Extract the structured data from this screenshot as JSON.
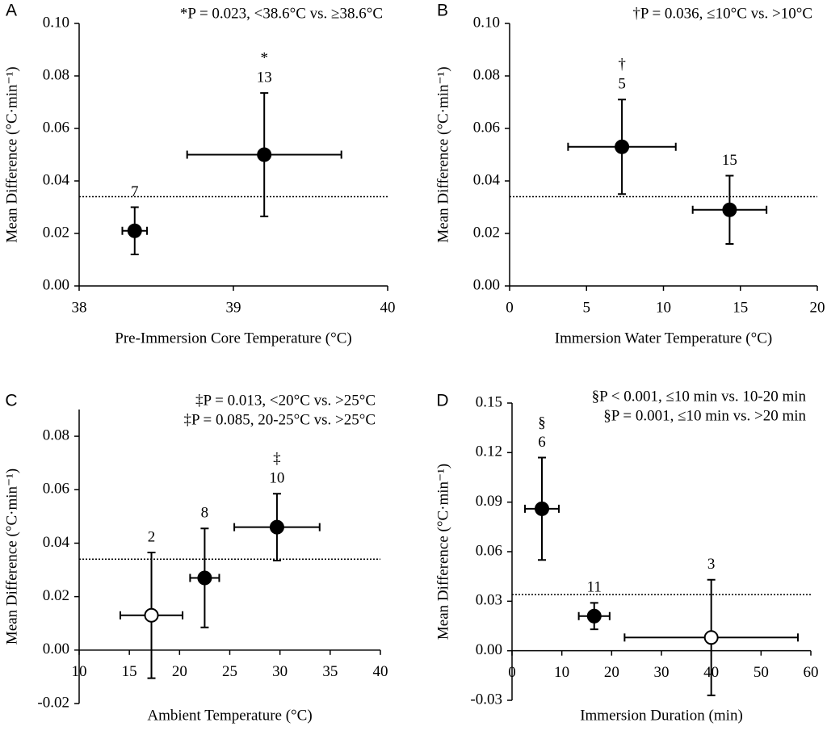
{
  "chart_data": [
    {
      "type": "scatter",
      "label": "A",
      "annotations": [
        "*P = 0.023, <38.6°C vs. ≥38.6°C"
      ],
      "xlabel": "Pre-Immersion Core Temperature (°C)",
      "ylabel": "Mean Difference (°C·min⁻¹)",
      "xlim": [
        38,
        40
      ],
      "xticks": [
        38,
        39,
        40
      ],
      "ylim": [
        0,
        0.1
      ],
      "yticks": [
        {
          "value": 0,
          "label": "0.00"
        },
        0.02,
        0.04,
        0.06,
        0.08,
        {
          "value": 0.1,
          "label": "0.10"
        }
      ],
      "x": [
        38.36,
        39.2
      ],
      "values": [
        0.021,
        0.05
      ],
      "x_error": [
        0.08,
        0.5
      ],
      "y_error": [
        0.009,
        0.0235
      ],
      "filled": [
        true,
        true
      ],
      "point_labels": [
        "7",
        "13"
      ],
      "symbols": [
        null,
        "*"
      ],
      "reference_line": 0.034,
      "color": "#000000"
    },
    {
      "type": "scatter",
      "label": "B",
      "annotations": [
        "†P = 0.036, ≤10°C vs. >10°C"
      ],
      "xlabel": "Immersion Water Temperature (°C)",
      "ylabel": "Mean Difference (°C·min⁻¹)",
      "xlim": [
        0,
        20
      ],
      "xticks": [
        0,
        5,
        10,
        15,
        20
      ],
      "ylim": [
        0,
        0.1
      ],
      "yticks": [
        {
          "value": 0,
          "label": "0.00"
        },
        0.02,
        0.04,
        0.06,
        0.08,
        {
          "value": 0.1,
          "label": "0.10"
        }
      ],
      "x": [
        7.3,
        14.3
      ],
      "values": [
        0.053,
        0.029
      ],
      "x_error": [
        3.5,
        2.4
      ],
      "y_error": [
        0.018,
        0.013
      ],
      "filled": [
        true,
        true
      ],
      "point_labels": [
        "5",
        "15"
      ],
      "symbols": [
        "†",
        null
      ],
      "reference_line": 0.034,
      "color": "#000000"
    },
    {
      "type": "scatter",
      "label": "C",
      "annotations": [
        "‡P = 0.013, <20°C vs. >25°C",
        "‡P = 0.085, 20-25°C vs. >25°C"
      ],
      "xlabel": "Ambient Temperature (°C)",
      "ylabel": "Mean Difference (°C·min⁻¹)",
      "xlim": [
        10,
        40
      ],
      "xticks": [
        10,
        15,
        20,
        25,
        30,
        35,
        40
      ],
      "ylim": [
        -0.02,
        0.09
      ],
      "yticks": [
        -0.02,
        {
          "value": 0,
          "label": "0.00"
        },
        0.02,
        0.04,
        0.06,
        0.08
      ],
      "x": [
        17.2,
        22.5,
        29.7
      ],
      "values": [
        0.013,
        0.027,
        0.046
      ],
      "x_error": [
        3.1,
        1.45,
        4.25
      ],
      "y_error": [
        0.0235,
        0.0185,
        0.0125
      ],
      "filled": [
        false,
        true,
        true
      ],
      "point_labels": [
        "2",
        "8",
        "10"
      ],
      "symbols": [
        null,
        null,
        "‡"
      ],
      "reference_line": 0.034,
      "color": "#000000"
    },
    {
      "type": "scatter",
      "label": "D",
      "annotations": [
        "§P < 0.001, ≤10 min vs. 10-20 min",
        "§P = 0.001, ≤10 min vs. >20 min"
      ],
      "xlabel": "Immersion Duration (min)",
      "ylabel": "Mean Difference (°C·min⁻¹)",
      "xlim": [
        0,
        60
      ],
      "xticks": [
        0,
        10,
        20,
        30,
        40,
        50,
        60
      ],
      "ylim": [
        -0.03,
        0.15
      ],
      "yticks": [
        -0.03,
        {
          "value": 0,
          "label": "0.00"
        },
        0.03,
        0.06,
        0.09,
        0.12,
        0.15
      ],
      "x": [
        6.0,
        16.5,
        40.0
      ],
      "values": [
        0.086,
        0.021,
        0.008
      ],
      "x_error": [
        3.4,
        3.1,
        17.4
      ],
      "y_error": [
        0.031,
        0.008,
        0.035
      ],
      "filled": [
        true,
        true,
        false
      ],
      "point_labels": [
        "6",
        "11",
        "3"
      ],
      "symbols": [
        "§",
        null,
        null
      ],
      "reference_line": 0.034,
      "color": "#000000"
    }
  ]
}
